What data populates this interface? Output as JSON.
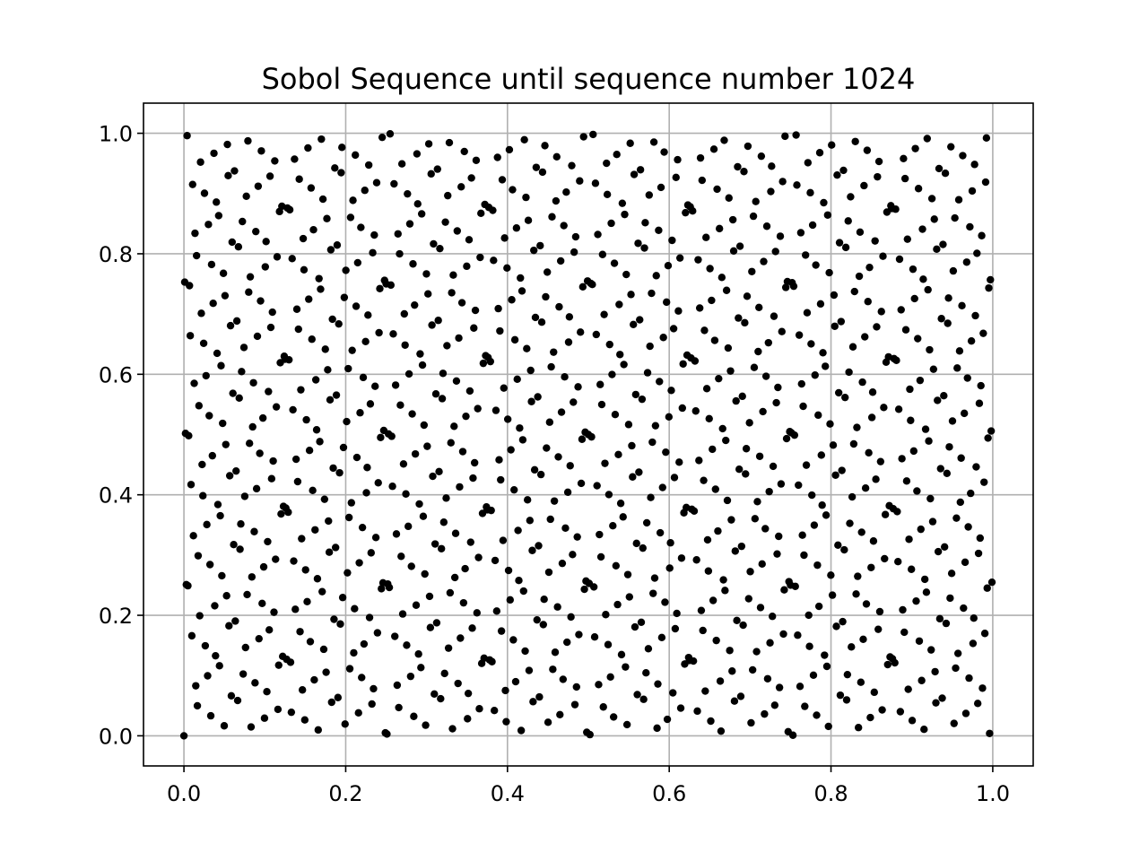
{
  "chart_data": {
    "type": "scatter",
    "title": "Sobol Sequence until sequence number 1024",
    "xlabel": "",
    "ylabel": "",
    "xlim": [
      -0.05,
      1.05
    ],
    "ylim": [
      -0.05,
      1.05
    ],
    "x_ticks": [
      0.0,
      0.2,
      0.4,
      0.6,
      0.8,
      1.0
    ],
    "y_ticks": [
      0.0,
      0.2,
      0.4,
      0.6,
      0.8,
      1.0
    ],
    "x_tick_labels": [
      "0.0",
      "0.2",
      "0.4",
      "0.6",
      "0.8",
      "1.0"
    ],
    "y_tick_labels": [
      "0.0",
      "0.2",
      "0.4",
      "0.6",
      "0.8",
      "1.0"
    ],
    "grid": true,
    "legend": "none",
    "marker_color": "#000000",
    "grid_color": "#b0b0b0",
    "series": [
      {
        "generator": "sobol-2d",
        "dimensions": 2,
        "points_shown": 1024,
        "points": []
      }
    ]
  }
}
